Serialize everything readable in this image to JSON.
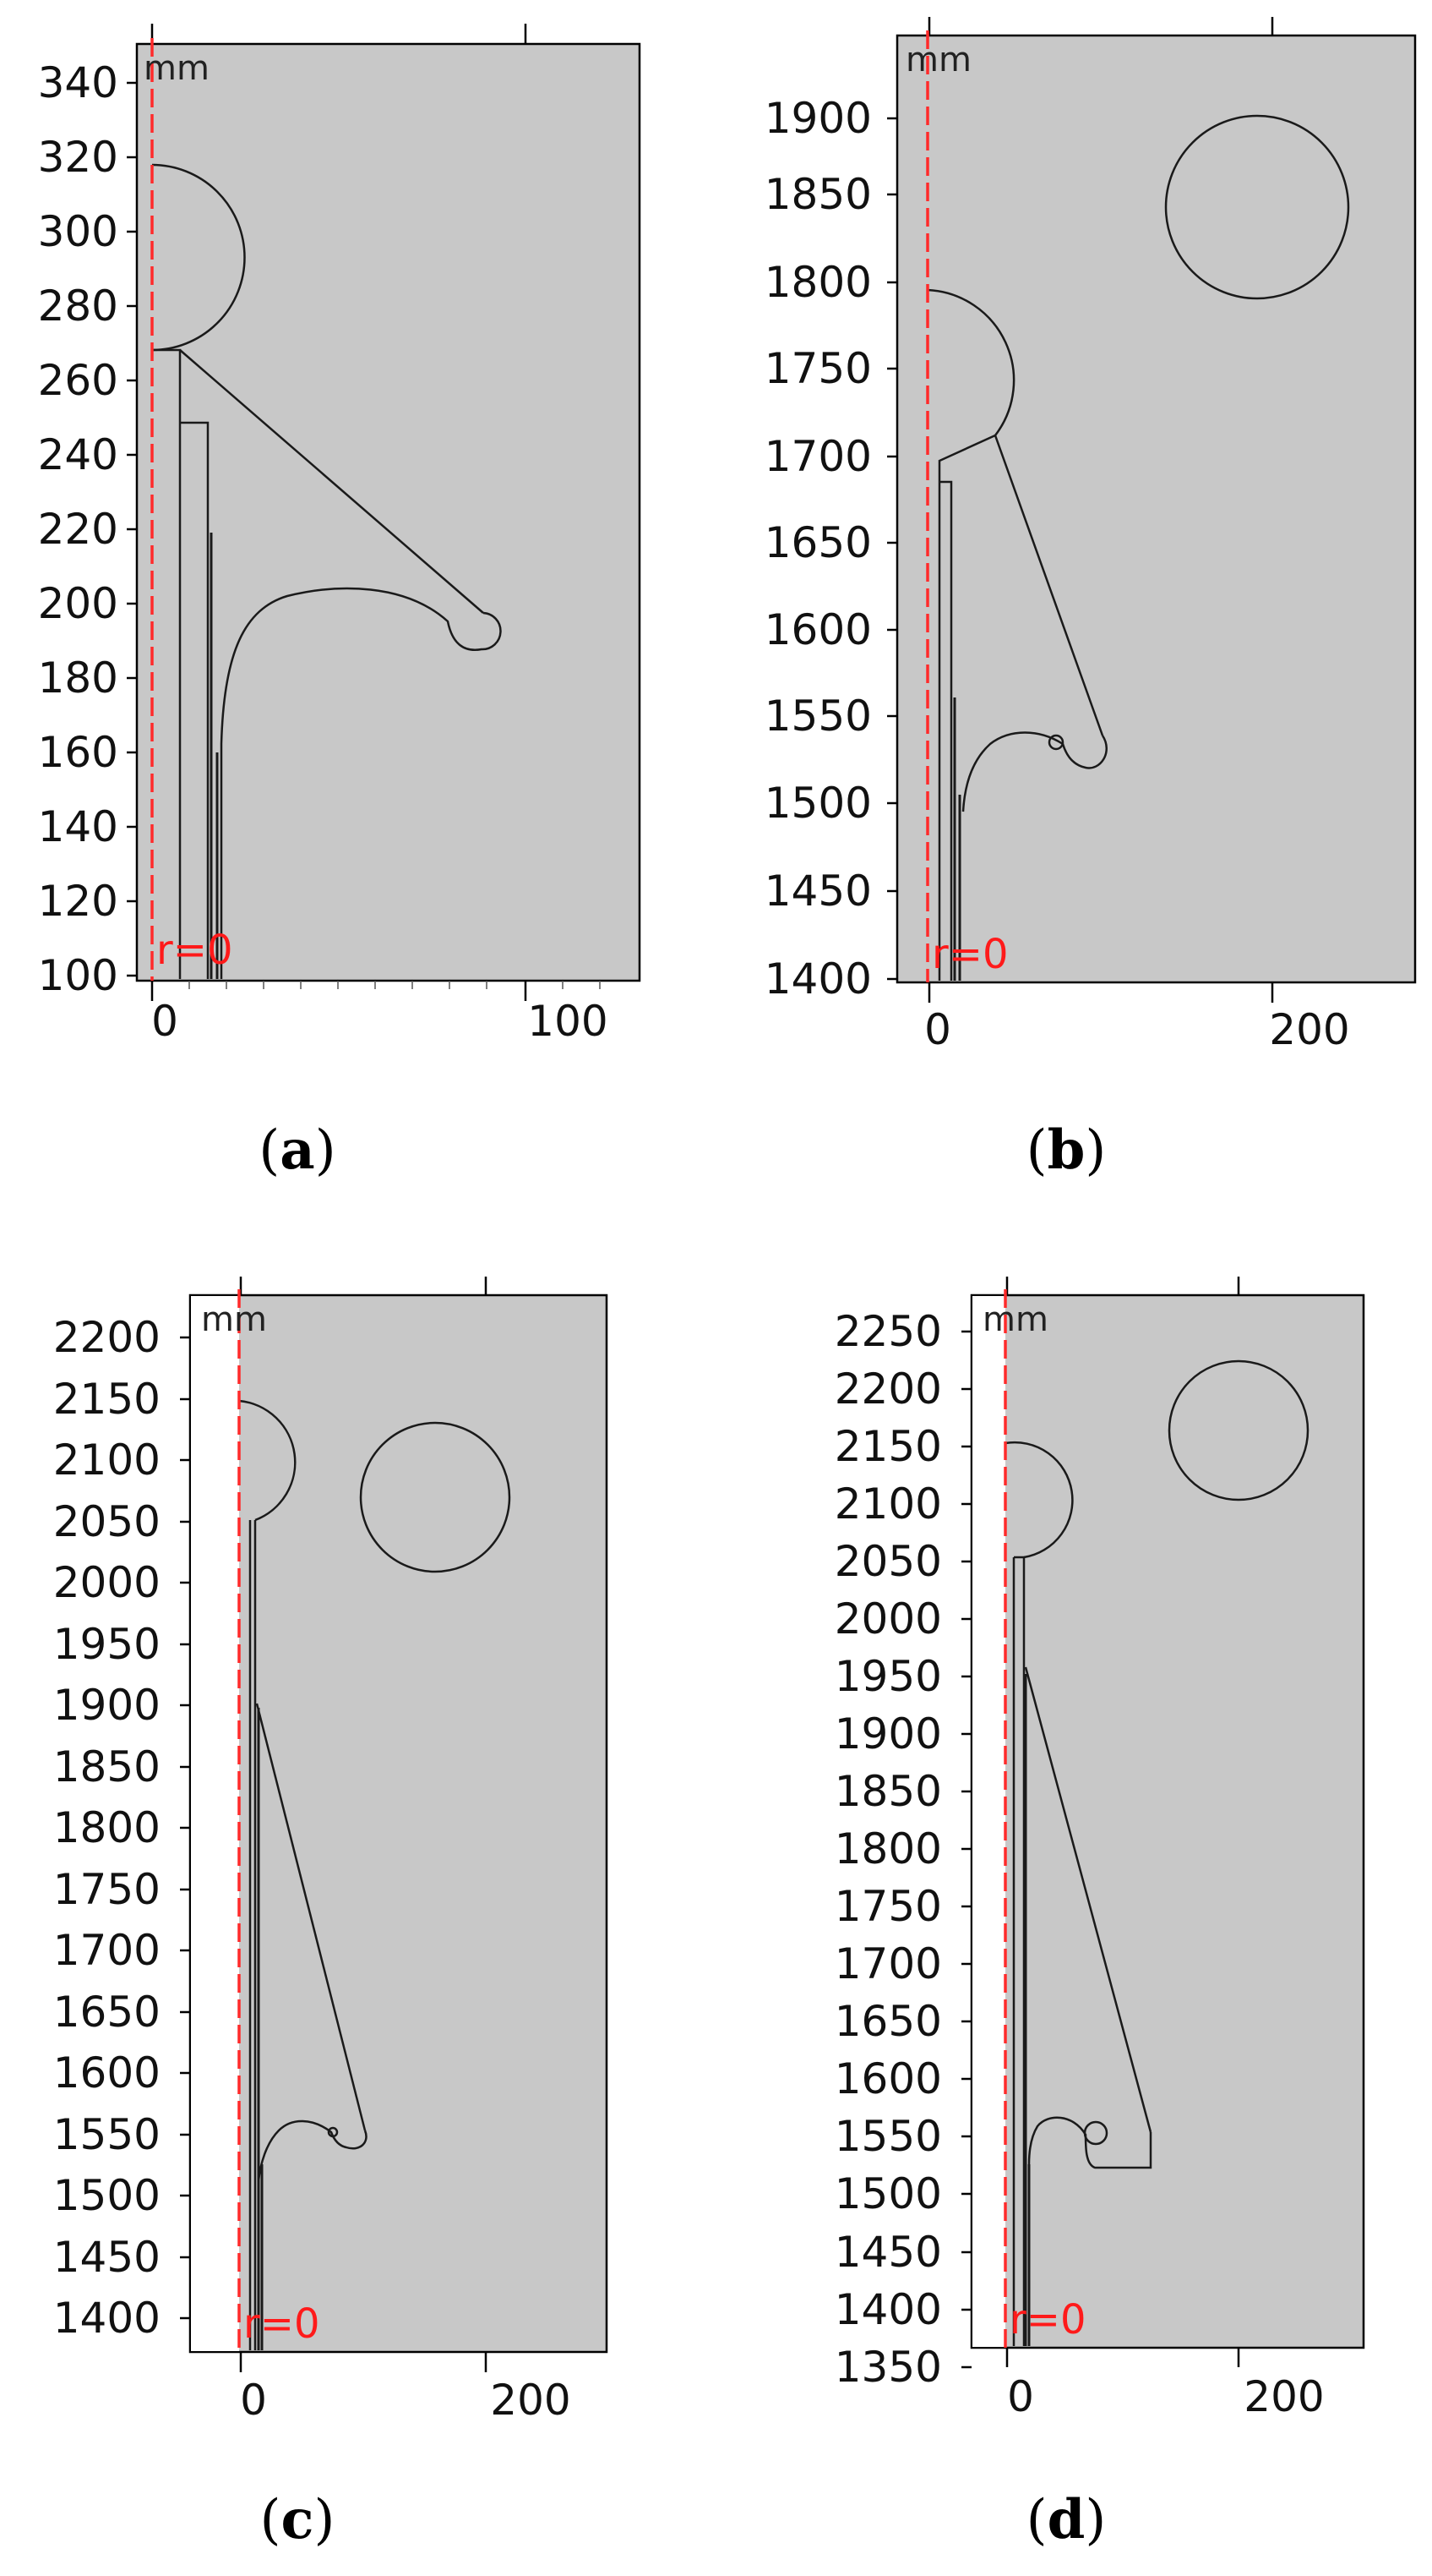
{
  "panels": [
    {
      "id": "a",
      "caption": "a",
      "unit": "mm",
      "axis_label": "r=0",
      "x_ticks": [
        "0",
        "100"
      ],
      "y_ticks": [
        "100",
        "120",
        "140",
        "160",
        "180",
        "200",
        "220",
        "240",
        "260",
        "280",
        "300",
        "320",
        "340"
      ]
    },
    {
      "id": "b",
      "caption": "b",
      "unit": "mm",
      "axis_label": "r=0",
      "x_ticks": [
        "0",
        "200"
      ],
      "y_ticks": [
        "1400",
        "1450",
        "1500",
        "1550",
        "1600",
        "1650",
        "1700",
        "1750",
        "1800",
        "1850",
        "1900"
      ]
    },
    {
      "id": "c",
      "caption": "c",
      "unit": "mm",
      "axis_label": "r=0",
      "x_ticks": [
        "0",
        "200"
      ],
      "y_ticks": [
        "1400",
        "1450",
        "1500",
        "1550",
        "1600",
        "1650",
        "1700",
        "1750",
        "1800",
        "1850",
        "1900",
        "1950",
        "2000",
        "2050",
        "2100",
        "2150",
        "2200"
      ]
    },
    {
      "id": "d",
      "caption": "d",
      "unit": "mm",
      "axis_label": "r=0",
      "x_ticks": [
        "0",
        "200"
      ],
      "y_ticks": [
        "1350",
        "1400",
        "1450",
        "1500",
        "1550",
        "1600",
        "1650",
        "1700",
        "1750",
        "1800",
        "1850",
        "1900",
        "1950",
        "2000",
        "2050",
        "2100",
        "2150",
        "2200",
        "2250"
      ]
    }
  ]
}
